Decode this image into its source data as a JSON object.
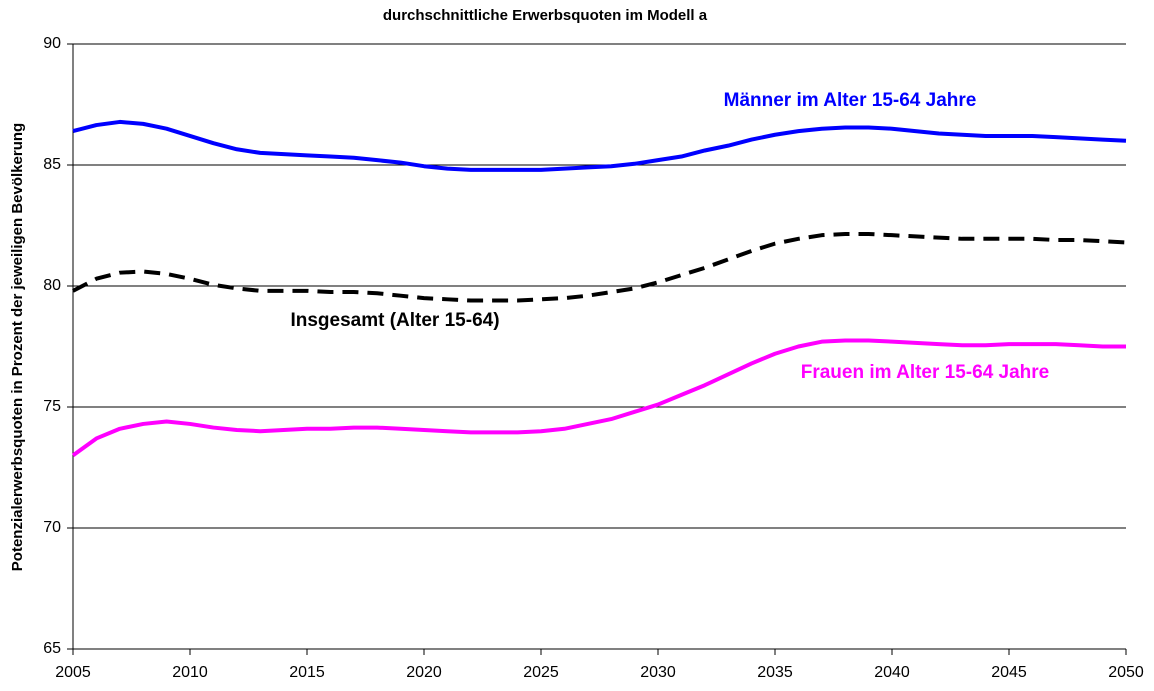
{
  "chart_data": {
    "type": "line",
    "title": "durchschnittliche Erwerbsquoten im Modell a",
    "y_label": "Potenzialerwerbsquoten in Prozent der jeweiligen Bevölkerung",
    "x": [
      2005,
      2006,
      2007,
      2008,
      2009,
      2010,
      2011,
      2012,
      2013,
      2014,
      2015,
      2016,
      2017,
      2018,
      2019,
      2020,
      2021,
      2022,
      2023,
      2024,
      2025,
      2026,
      2027,
      2028,
      2029,
      2030,
      2031,
      2032,
      2033,
      2034,
      2035,
      2036,
      2037,
      2038,
      2039,
      2040,
      2041,
      2042,
      2043,
      2044,
      2045,
      2046,
      2047,
      2048,
      2049,
      2050
    ],
    "series": [
      {
        "name": "Männer im Alter 15-64 Jahre",
        "color": "#0000ff",
        "dashed": false,
        "values": [
          86.4,
          86.65,
          86.78,
          86.7,
          86.5,
          86.2,
          85.9,
          85.65,
          85.5,
          85.45,
          85.4,
          85.35,
          85.3,
          85.2,
          85.1,
          84.95,
          84.85,
          84.8,
          84.8,
          84.8,
          84.8,
          84.85,
          84.9,
          84.95,
          85.05,
          85.2,
          85.35,
          85.6,
          85.8,
          86.05,
          86.25,
          86.4,
          86.5,
          86.55,
          86.55,
          86.5,
          86.4,
          86.3,
          86.25,
          86.2,
          86.2,
          86.2,
          86.15,
          86.1,
          86.05,
          86.0
        ]
      },
      {
        "name": "Insgesamt (Alter 15-64)",
        "color": "#000000",
        "dashed": true,
        "values": [
          79.8,
          80.3,
          80.55,
          80.6,
          80.5,
          80.3,
          80.05,
          79.9,
          79.8,
          79.8,
          79.8,
          79.75,
          79.75,
          79.7,
          79.6,
          79.5,
          79.45,
          79.4,
          79.4,
          79.4,
          79.45,
          79.5,
          79.6,
          79.75,
          79.9,
          80.15,
          80.45,
          80.75,
          81.1,
          81.45,
          81.75,
          81.95,
          82.1,
          82.15,
          82.15,
          82.1,
          82.05,
          82.0,
          81.95,
          81.95,
          81.95,
          81.95,
          81.9,
          81.9,
          81.85,
          81.8
        ]
      },
      {
        "name": "Frauen im Alter 15-64 Jahre",
        "color": "#ff00ff",
        "dashed": false,
        "values": [
          73.0,
          73.7,
          74.1,
          74.3,
          74.4,
          74.3,
          74.15,
          74.05,
          74.0,
          74.05,
          74.1,
          74.1,
          74.15,
          74.15,
          74.1,
          74.05,
          74.0,
          73.95,
          73.95,
          73.95,
          74.0,
          74.1,
          74.3,
          74.5,
          74.8,
          75.1,
          75.5,
          75.9,
          76.35,
          76.8,
          77.2,
          77.5,
          77.7,
          77.75,
          77.75,
          77.7,
          77.65,
          77.6,
          77.55,
          77.55,
          77.6,
          77.6,
          77.6,
          77.55,
          77.5,
          77.5
        ]
      }
    ],
    "xlim": [
      2005,
      2050
    ],
    "xticks": [
      2005,
      2010,
      2015,
      2020,
      2025,
      2030,
      2035,
      2040,
      2045,
      2050
    ],
    "ylim": [
      65,
      90
    ],
    "yticks": [
      65,
      70,
      75,
      80,
      85,
      90
    ],
    "grid": true
  }
}
